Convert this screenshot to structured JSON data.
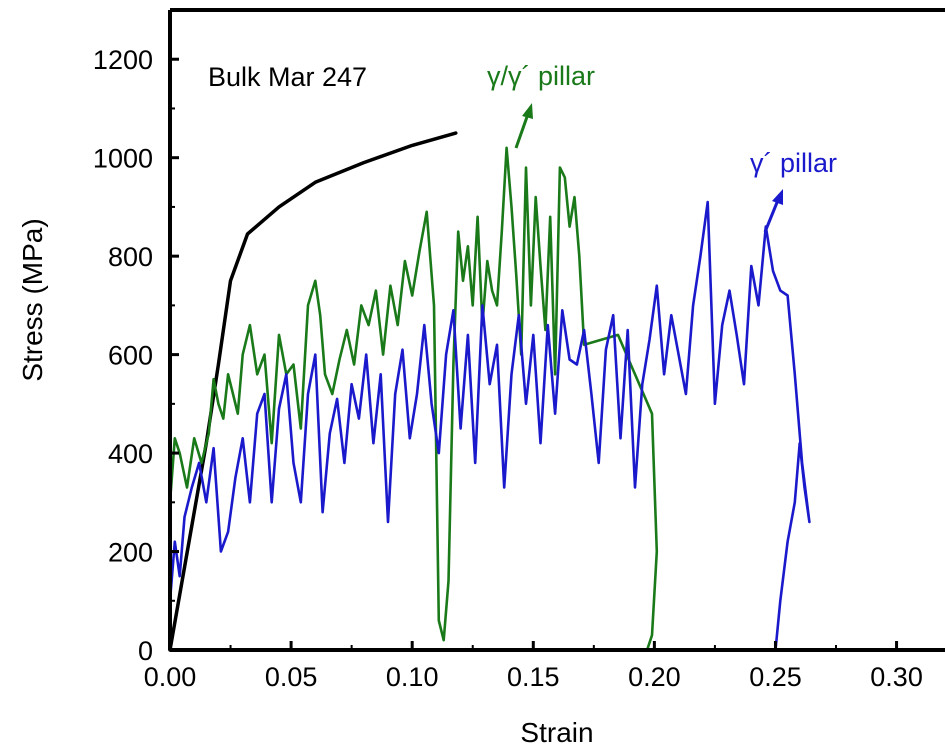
{
  "chart_data": {
    "type": "line",
    "xlabel": "Strain",
    "ylabel": "Stress (MPa)",
    "xlim": [
      0,
      0.32
    ],
    "ylim": [
      0,
      1300
    ],
    "x_ticks": [
      "0.00",
      "0.05",
      "0.10",
      "0.15",
      "0.20",
      "0.25",
      "0.30"
    ],
    "y_ticks": [
      "0",
      "200",
      "400",
      "600",
      "800",
      "1000",
      "1200"
    ],
    "grid": false,
    "annotations": [
      {
        "text": "Bulk Mar 247",
        "color": "#000000"
      },
      {
        "text": "γ/γ´ pillar",
        "color": "#1a7a1a"
      },
      {
        "text": "γ´ pillar",
        "color": "#1a1acc"
      }
    ],
    "series": [
      {
        "name": "Bulk Mar 247",
        "color": "#000000",
        "x": [
          0,
          0.005,
          0.01,
          0.015,
          0.02,
          0.025,
          0.032,
          0.045,
          0.06,
          0.08,
          0.1,
          0.118
        ],
        "y": [
          0,
          140,
          280,
          420,
          580,
          750,
          845,
          900,
          950,
          990,
          1025,
          1050
        ]
      },
      {
        "name": "γ/γ´ pillar",
        "color": "#1a7a1a",
        "x": [
          0,
          0.002,
          0.004,
          0.007,
          0.01,
          0.013,
          0.016,
          0.018,
          0.02,
          0.022,
          0.024,
          0.026,
          0.028,
          0.03,
          0.033,
          0.036,
          0.039,
          0.042,
          0.045,
          0.048,
          0.051,
          0.054,
          0.057,
          0.06,
          0.062,
          0.064,
          0.067,
          0.07,
          0.073,
          0.076,
          0.079,
          0.082,
          0.085,
          0.088,
          0.091,
          0.094,
          0.097,
          0.1,
          0.103,
          0.106,
          0.109,
          0.111,
          0.113,
          0.115,
          0.117,
          0.119,
          0.121,
          0.123,
          0.125,
          0.127,
          0.129,
          0.131,
          0.133,
          0.135,
          0.137,
          0.139,
          0.141,
          0.143,
          0.145,
          0.147,
          0.149,
          0.151,
          0.153,
          0.155,
          0.157,
          0.159,
          0.161,
          0.163,
          0.165,
          0.167,
          0.169,
          0.171,
          0.185,
          0.199,
          0.201,
          0.199,
          0.197,
          0.195
        ],
        "y": [
          300,
          430,
          400,
          330,
          430,
          380,
          440,
          550,
          500,
          470,
          560,
          520,
          480,
          600,
          660,
          560,
          600,
          420,
          640,
          560,
          580,
          450,
          700,
          750,
          680,
          560,
          520,
          590,
          650,
          580,
          700,
          660,
          730,
          600,
          740,
          660,
          790,
          720,
          810,
          890,
          700,
          60,
          20,
          140,
          580,
          850,
          750,
          820,
          700,
          880,
          660,
          790,
          730,
          700,
          850,
          1020,
          900,
          760,
          600,
          980,
          700,
          920,
          780,
          650,
          880,
          560,
          980,
          960,
          860,
          920,
          800,
          620,
          640,
          480,
          200,
          30,
          0,
          0
        ]
      },
      {
        "name": "γ´ pillar",
        "color": "#1a1acc",
        "x": [
          0,
          0.002,
          0.004,
          0.006,
          0.009,
          0.012,
          0.015,
          0.018,
          0.021,
          0.024,
          0.027,
          0.03,
          0.033,
          0.036,
          0.039,
          0.042,
          0.045,
          0.048,
          0.051,
          0.054,
          0.057,
          0.06,
          0.063,
          0.066,
          0.069,
          0.072,
          0.075,
          0.078,
          0.081,
          0.084,
          0.087,
          0.09,
          0.093,
          0.096,
          0.099,
          0.102,
          0.105,
          0.108,
          0.111,
          0.114,
          0.117,
          0.12,
          0.123,
          0.126,
          0.129,
          0.132,
          0.135,
          0.138,
          0.141,
          0.144,
          0.147,
          0.15,
          0.153,
          0.156,
          0.159,
          0.162,
          0.165,
          0.168,
          0.171,
          0.174,
          0.177,
          0.18,
          0.183,
          0.186,
          0.189,
          0.192,
          0.195,
          0.198,
          0.201,
          0.204,
          0.207,
          0.21,
          0.213,
          0.216,
          0.219,
          0.222,
          0.225,
          0.228,
          0.231,
          0.234,
          0.237,
          0.24,
          0.243,
          0.246,
          0.249,
          0.252,
          0.255,
          0.258,
          0.261,
          0.264,
          0.262,
          0.26,
          0.258,
          0.255,
          0.252,
          0.25
        ],
        "y": [
          100,
          220,
          150,
          270,
          330,
          380,
          300,
          410,
          200,
          240,
          350,
          430,
          300,
          480,
          520,
          300,
          490,
          560,
          380,
          300,
          520,
          600,
          280,
          440,
          510,
          380,
          540,
          470,
          600,
          420,
          560,
          260,
          520,
          610,
          430,
          520,
          660,
          500,
          400,
          600,
          690,
          450,
          640,
          380,
          700,
          540,
          620,
          330,
          560,
          680,
          500,
          640,
          420,
          660,
          480,
          690,
          590,
          580,
          650,
          520,
          380,
          610,
          680,
          430,
          650,
          330,
          540,
          630,
          740,
          560,
          680,
          600,
          520,
          700,
          800,
          910,
          500,
          660,
          730,
          640,
          540,
          780,
          700,
          860,
          770,
          730,
          720,
          560,
          380,
          260,
          330,
          420,
          300,
          220,
          100,
          0
        ]
      }
    ]
  }
}
